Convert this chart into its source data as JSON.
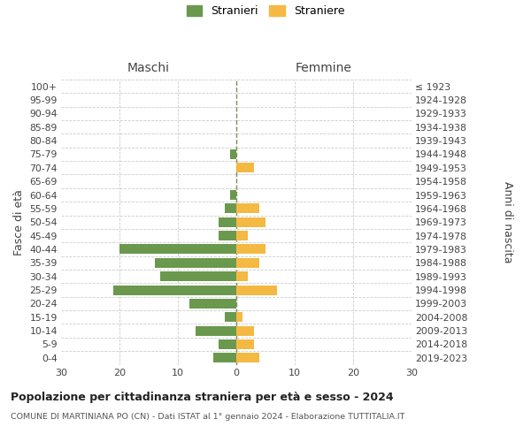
{
  "age_groups": [
    "100+",
    "95-99",
    "90-94",
    "85-89",
    "80-84",
    "75-79",
    "70-74",
    "65-69",
    "60-64",
    "55-59",
    "50-54",
    "45-49",
    "40-44",
    "35-39",
    "30-34",
    "25-29",
    "20-24",
    "15-19",
    "10-14",
    "5-9",
    "0-4"
  ],
  "birth_years": [
    "≤ 1923",
    "1924-1928",
    "1929-1933",
    "1934-1938",
    "1939-1943",
    "1944-1948",
    "1949-1953",
    "1954-1958",
    "1959-1963",
    "1964-1968",
    "1969-1973",
    "1974-1978",
    "1979-1983",
    "1984-1988",
    "1989-1993",
    "1994-1998",
    "1999-2003",
    "2004-2008",
    "2009-2013",
    "2014-2018",
    "2019-2023"
  ],
  "maschi": [
    0,
    0,
    0,
    0,
    0,
    1,
    0,
    0,
    1,
    2,
    3,
    3,
    20,
    14,
    13,
    21,
    8,
    2,
    7,
    3,
    4
  ],
  "femmine": [
    0,
    0,
    0,
    0,
    0,
    0,
    3,
    0,
    0,
    4,
    5,
    2,
    5,
    4,
    2,
    7,
    0,
    1,
    3,
    3,
    4
  ],
  "color_maschi": "#6a994e",
  "color_femmine": "#f4b942",
  "color_grid": "#cccccc",
  "color_dashed": "#888855",
  "title": "Popolazione per cittadinanza straniera per età e sesso - 2024",
  "subtitle": "COMUNE DI MARTINIANA PO (CN) - Dati ISTAT al 1° gennaio 2024 - Elaborazione TUTTITALIA.IT",
  "ylabel_left": "Fasce di età",
  "ylabel_right": "Anni di nascita",
  "xlabel_left": "Maschi",
  "xlabel_right": "Femmine",
  "legend_maschi": "Stranieri",
  "legend_femmine": "Straniere",
  "xlim": 30,
  "xticks": [
    30,
    20,
    10,
    0,
    10,
    20,
    30
  ],
  "background_color": "#ffffff"
}
